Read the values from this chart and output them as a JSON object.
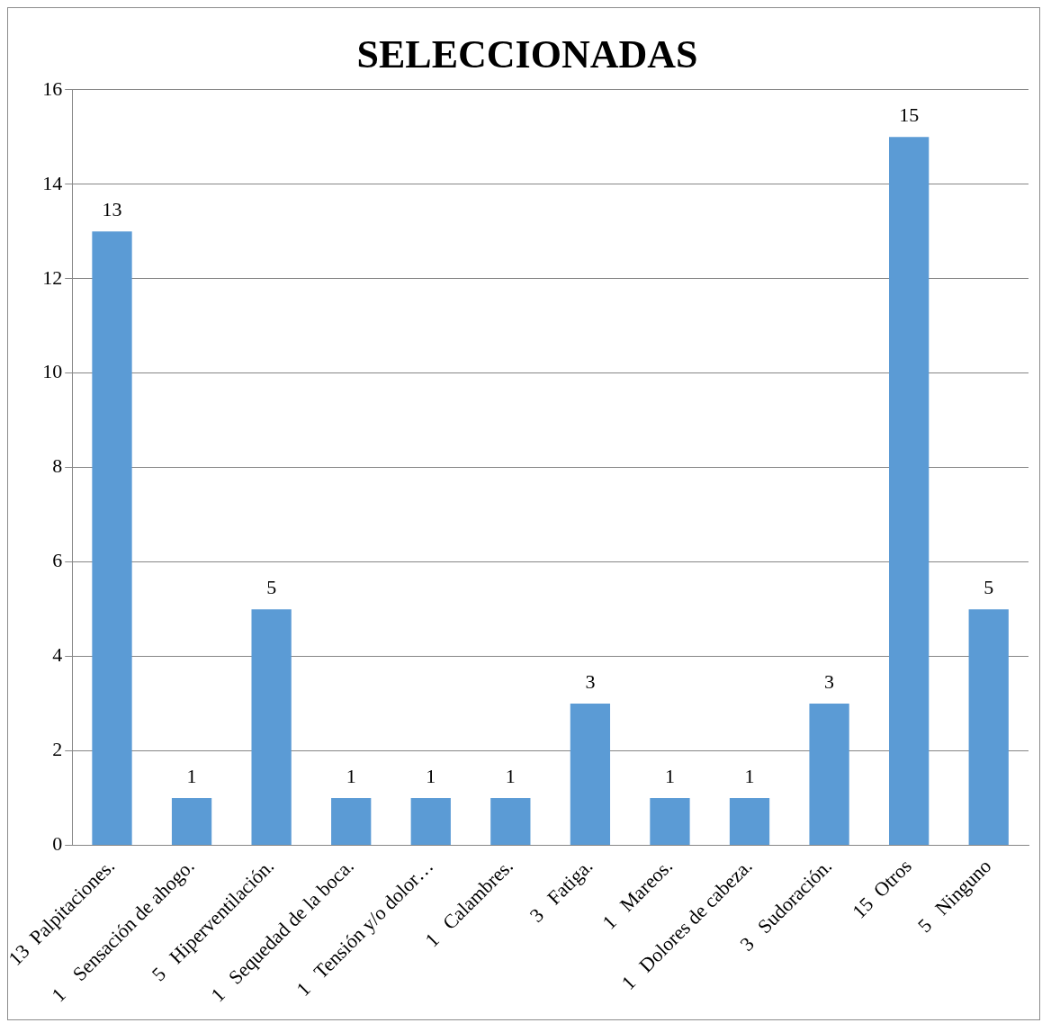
{
  "chart_data": {
    "type": "bar",
    "title": "SELECCIONADAS",
    "categories": [
      "13  Palpitaciones.",
      "1    Sensación de ahogo.",
      "5   Hiperventilación.",
      "1   Sequedad de la boca.",
      "1   Tensión y/o dolor…",
      "1   Calambres.",
      "3   Fatiga.",
      "1   Mareos.",
      "1   Dolores de cabeza.",
      "3   Sudoración.",
      "15  Otros",
      "5   Ninguno"
    ],
    "values": [
      13,
      1,
      5,
      1,
      1,
      1,
      3,
      1,
      1,
      3,
      15,
      5
    ],
    "color": "#5b9bd5",
    "ylim": [
      0,
      16
    ],
    "yticks": [
      0,
      2,
      4,
      6,
      8,
      10,
      12,
      14,
      16
    ],
    "grid": "y",
    "data_labels": true,
    "legend": false
  }
}
